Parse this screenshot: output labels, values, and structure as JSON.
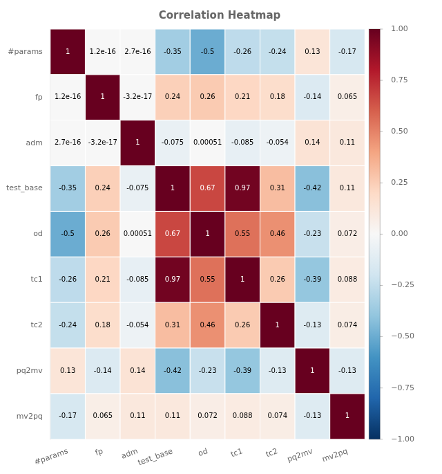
{
  "chart_data": {
    "type": "heatmap",
    "title": "Correlation Heatmap",
    "categories": [
      "#params",
      "fp",
      "adm",
      "test_base",
      "od",
      "tc1",
      "tc2",
      "pq2mv",
      "mv2pq"
    ],
    "values": [
      [
        1,
        1.2e-16,
        2.7e-16,
        -0.35,
        -0.5,
        -0.26,
        -0.24,
        0.13,
        -0.17
      ],
      [
        1.2e-16,
        1,
        -3.2e-17,
        0.24,
        0.26,
        0.21,
        0.18,
        -0.14,
        0.065
      ],
      [
        2.7e-16,
        -3.2e-17,
        1,
        -0.075,
        0.00051,
        -0.085,
        -0.054,
        0.14,
        0.11
      ],
      [
        -0.35,
        0.24,
        -0.075,
        1,
        0.67,
        0.97,
        0.31,
        -0.42,
        0.11
      ],
      [
        -0.5,
        0.26,
        0.00051,
        0.67,
        1,
        0.55,
        0.46,
        -0.23,
        0.072
      ],
      [
        -0.26,
        0.21,
        -0.085,
        0.97,
        0.55,
        1,
        0.26,
        -0.39,
        0.088
      ],
      [
        -0.24,
        0.18,
        -0.054,
        0.31,
        0.46,
        0.26,
        1,
        -0.13,
        0.074
      ],
      [
        0.13,
        -0.14,
        0.14,
        -0.42,
        -0.23,
        -0.39,
        -0.13,
        1,
        -0.13
      ],
      [
        -0.17,
        0.065,
        0.11,
        0.11,
        0.072,
        0.088,
        0.074,
        -0.13,
        1
      ]
    ],
    "value_labels": [
      [
        "1",
        "1.2e-16",
        "2.7e-16",
        "-0.35",
        "-0.5",
        "-0.26",
        "-0.24",
        "0.13",
        "-0.17"
      ],
      [
        "1.2e-16",
        "1",
        "-3.2e-17",
        "0.24",
        "0.26",
        "0.21",
        "0.18",
        "-0.14",
        "0.065"
      ],
      [
        "2.7e-16",
        "-3.2e-17",
        "1",
        "-0.075",
        "0.00051",
        "-0.085",
        "-0.054",
        "0.14",
        "0.11"
      ],
      [
        "-0.35",
        "0.24",
        "-0.075",
        "1",
        "0.67",
        "0.97",
        "0.31",
        "-0.42",
        "0.11"
      ],
      [
        "-0.5",
        "0.26",
        "0.00051",
        "0.67",
        "1",
        "0.55",
        "0.46",
        "-0.23",
        "0.072"
      ],
      [
        "-0.26",
        "0.21",
        "-0.085",
        "0.97",
        "0.55",
        "1",
        "0.26",
        "-0.39",
        "0.088"
      ],
      [
        "-0.24",
        "0.18",
        "-0.054",
        "0.31",
        "0.46",
        "0.26",
        "1",
        "-0.13",
        "0.074"
      ],
      [
        "0.13",
        "-0.14",
        "0.14",
        "-0.42",
        "-0.23",
        "-0.39",
        "-0.13",
        "1",
        "-0.13"
      ],
      [
        "-0.17",
        "0.065",
        "0.11",
        "0.11",
        "0.072",
        "0.088",
        "0.074",
        "-0.13",
        "1"
      ]
    ],
    "data_labels": true,
    "grid": false,
    "colorbar_lim": [
      -1,
      1
    ],
    "colorbar_ticks": [
      {
        "value": -1,
        "label": "−1.00"
      },
      {
        "value": -0.75,
        "label": "−0.75"
      },
      {
        "value": -0.5,
        "label": "−0.50"
      },
      {
        "value": -0.25,
        "label": "−0.25"
      },
      {
        "value": 0,
        "label": "0.00"
      },
      0.25,
      {
        "value": 0.5,
        "label": "0.50"
      },
      0.75,
      {
        "value": 1,
        "label": "1.00"
      }
    ],
    "color": [
      "#053061",
      "#2166ac",
      "#4393c3",
      "#92c5de",
      "#d1e5f0",
      "#f7f7f7",
      "#fddbc7",
      "#f4a582",
      "#d6604d",
      "#b2182b",
      "#67001f"
    ]
  }
}
